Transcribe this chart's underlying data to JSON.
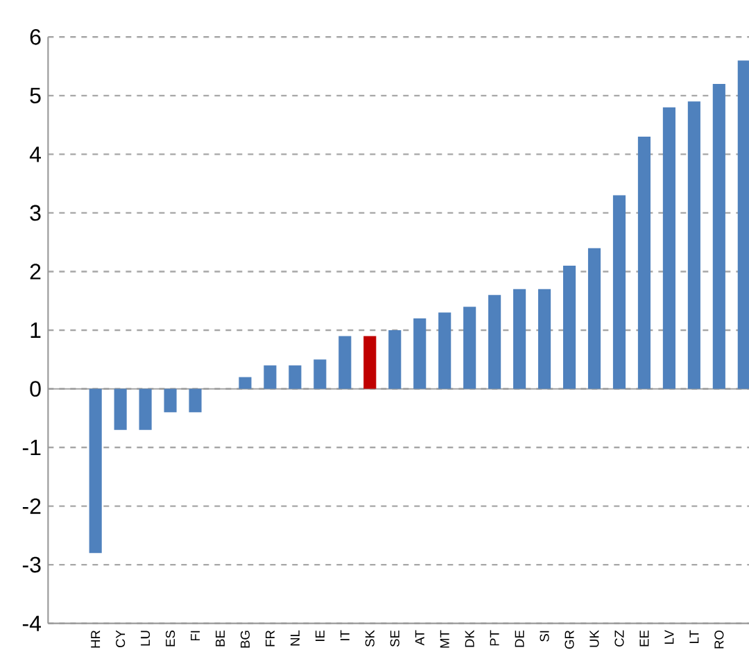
{
  "chart_data": {
    "type": "bar",
    "categories": [
      "HR",
      "CY",
      "LU",
      "ES",
      "FI",
      "BE",
      "BG",
      "FR",
      "NL",
      "IE",
      "IT",
      "SK",
      "SE",
      "AT",
      "MT",
      "DK",
      "PT",
      "DE",
      "SI",
      "GR",
      "UK",
      "CZ",
      "EE",
      "LV",
      "LT",
      "RO",
      null
    ],
    "values": [
      -2.8,
      -0.7,
      -0.7,
      -0.4,
      -0.4,
      0,
      0.2,
      0.4,
      0.4,
      0.5,
      0.9,
      0.9,
      1.0,
      1.2,
      1.3,
      1.4,
      1.6,
      1.7,
      1.7,
      2.1,
      2.4,
      3.3,
      4.3,
      4.8,
      4.9,
      5.2,
      5.6
    ],
    "colors": [
      "#4f81bd",
      "#4f81bd",
      "#4f81bd",
      "#4f81bd",
      "#4f81bd",
      "#4f81bd",
      "#4f81bd",
      "#4f81bd",
      "#4f81bd",
      "#4f81bd",
      "#4f81bd",
      "#c00000",
      "#4f81bd",
      "#4f81bd",
      "#4f81bd",
      "#4f81bd",
      "#4f81bd",
      "#4f81bd",
      "#4f81bd",
      "#4f81bd",
      "#4f81bd",
      "#4f81bd",
      "#4f81bd",
      "#4f81bd",
      "#4f81bd",
      "#4f81bd",
      "#4f81bd"
    ],
    "ylim": [
      -4,
      6
    ],
    "yticks": [
      -4,
      -3,
      -2,
      -1,
      0,
      1,
      2,
      3,
      4,
      5,
      6
    ],
    "grid": "y"
  }
}
